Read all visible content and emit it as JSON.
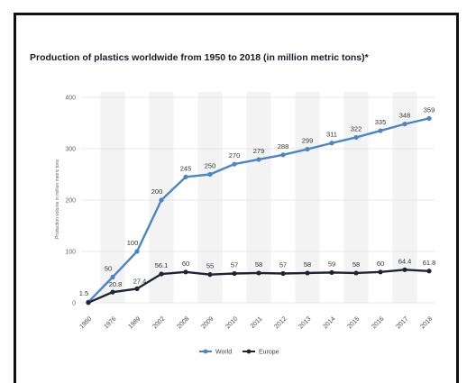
{
  "chart_data": {
    "type": "line",
    "title": "Production of plastics worldwide from 1950 to 2018 (in million metric tons)*",
    "xlabel": "",
    "ylabel": "Production volume in million metric tons",
    "categories": [
      "1950",
      "1976",
      "1989",
      "2002",
      "2008",
      "2009",
      "2010",
      "2011",
      "2012",
      "2013",
      "2014",
      "2015",
      "2016",
      "2017",
      "2018"
    ],
    "ylim": [
      0,
      400
    ],
    "yticks": [
      "0",
      "100",
      "200",
      "300",
      "400"
    ],
    "grid": true,
    "legend_position": "bottom-center",
    "series": [
      {
        "name": "World",
        "color": "#4a86c5",
        "values": [
          1.5,
          50,
          100,
          200,
          245,
          250,
          270,
          279,
          288,
          299,
          311,
          322,
          335,
          348,
          359
        ],
        "labels": [
          "1.5",
          "50",
          "100",
          "200",
          "245",
          "250",
          "270",
          "279",
          "288",
          "299",
          "311",
          "322",
          "335",
          "348",
          "359"
        ]
      },
      {
        "name": "Europe",
        "color": "#1c2533",
        "values": [
          0.35,
          20.8,
          27.4,
          56.1,
          60,
          55,
          57,
          58,
          57,
          58,
          59,
          58,
          60,
          64.4,
          61.8
        ],
        "labels": [
          "",
          "20.8",
          "27.4",
          "56.1",
          "60",
          "55",
          "57",
          "58",
          "57",
          "58",
          "59",
          "58",
          "60",
          "64.4",
          "61.8"
        ]
      }
    ]
  }
}
